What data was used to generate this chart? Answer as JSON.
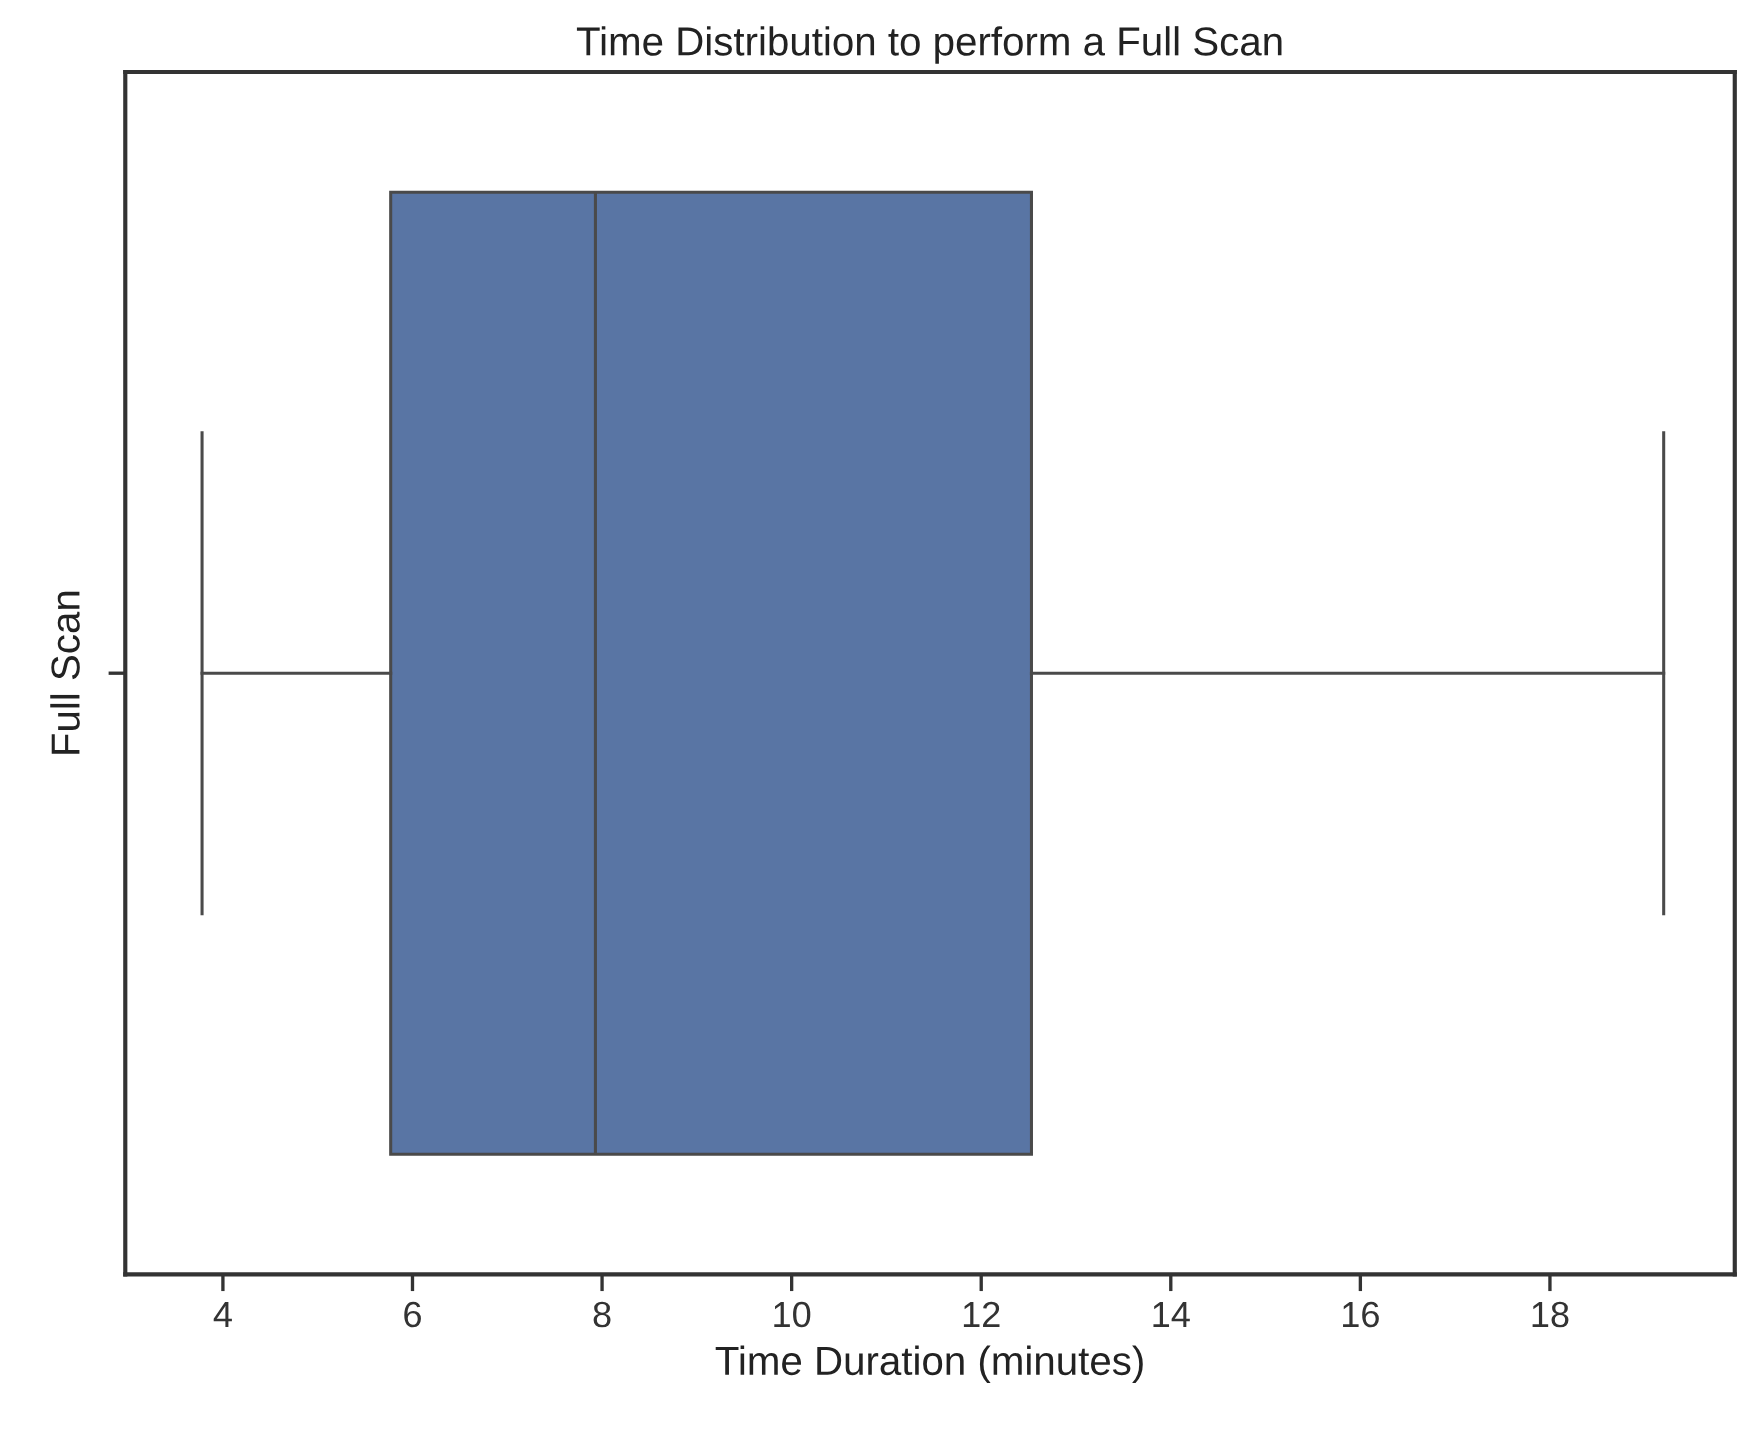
{
  "chart_data": {
    "type": "box",
    "orientation": "horizontal",
    "title": "Time Distribution to perform a Full Scan",
    "xlabel": "Time Duration (minutes)",
    "ylabel": "Full Scan",
    "categories": [
      null
    ],
    "color": "#5975a4",
    "boxes": [
      {
        "low": 3.78,
        "q1": 5.77,
        "median": 7.93,
        "q3": 12.53,
        "high": 19.2
      }
    ],
    "xlim": [
      2.97,
      19.95
    ],
    "xticks": [
      4,
      6,
      8,
      10,
      12,
      14,
      16,
      18
    ],
    "grid": false
  }
}
